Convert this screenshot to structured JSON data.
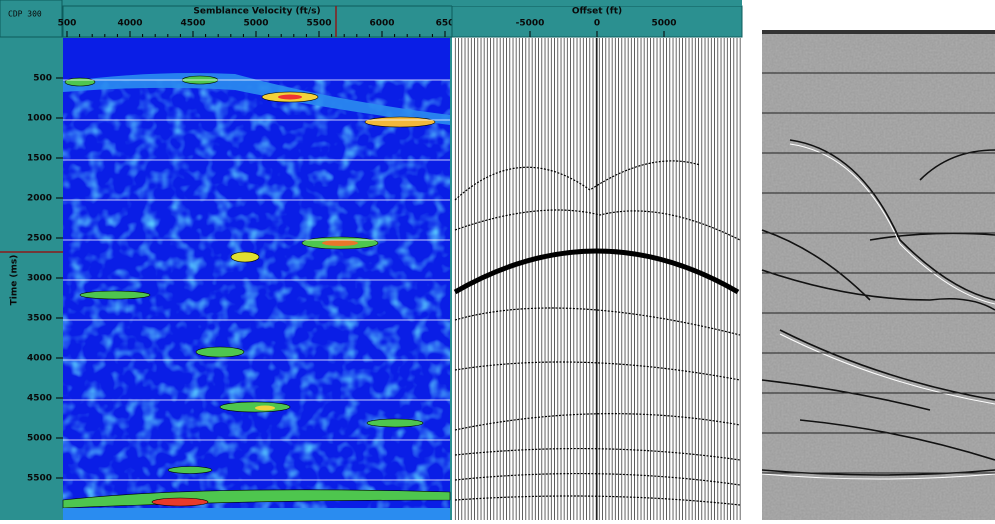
{
  "header": {
    "cdp_label": "CDP 300",
    "semblance_title": "Semblance Velocity (ft/s)",
    "offset_title": "Offset (ft)"
  },
  "semblance_axis": {
    "x_tick_labels": [
      "500",
      "4000",
      "4500",
      "5000",
      "5500",
      "6000",
      "650"
    ],
    "y_title": "Time (ms)",
    "y_tick_labels": [
      "500",
      "1000",
      "1500",
      "2000",
      "2500",
      "3000",
      "3500",
      "4000",
      "4500",
      "5000",
      "5500"
    ]
  },
  "offset_axis": {
    "x_tick_labels": [
      "-5000",
      "0",
      "5000"
    ]
  }
}
